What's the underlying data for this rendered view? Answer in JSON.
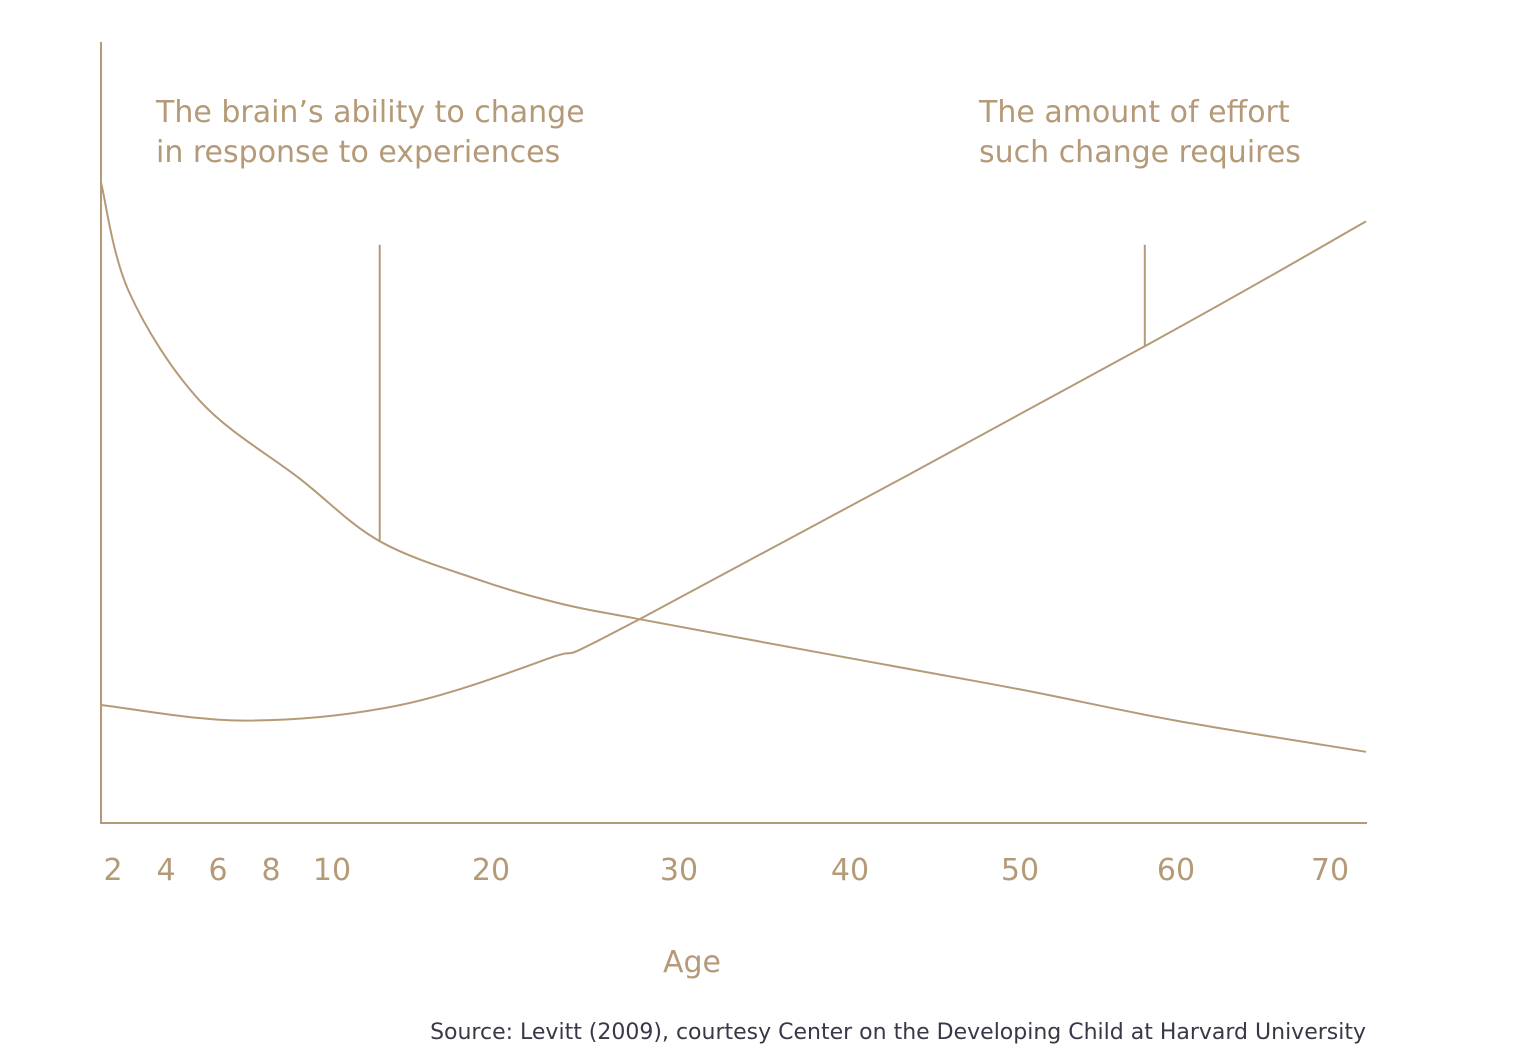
{
  "chart_data": {
    "type": "line",
    "title": "",
    "xlabel": "Age",
    "ylabel": "",
    "x_ticks": [
      2,
      4,
      6,
      8,
      10,
      20,
      30,
      40,
      50,
      60,
      70
    ],
    "x_scale": "non-linear (ages 2-10 expanded)",
    "xlim": [
      1.5,
      72.3
    ],
    "ylim": [
      0,
      1
    ],
    "y_ticks": [],
    "grid": false,
    "color": "#b59a78",
    "series": [
      {
        "name": "The brain's ability to change in response to experiences",
        "x": [
          1.5,
          2.6,
          5.3,
          8.95,
          13,
          19.3,
          23.7,
          27.9,
          40,
          50,
          60,
          72.3
        ],
        "y": [
          0.82,
          0.68,
          0.54,
          0.44,
          0.36,
          0.31,
          0.28,
          0.26,
          0.21,
          0.17,
          0.13,
          0.09
        ]
      },
      {
        "name": "The amount of effort such change requires",
        "x": [
          1.5,
          7,
          14.3,
          23.1,
          27.9,
          58,
          72.3
        ],
        "y": [
          0.15,
          0.13,
          0.15,
          0.21,
          0.26,
          0.61,
          0.77
        ]
      }
    ],
    "annotations": [
      {
        "lines": [
          "The brain’s ability to change",
          "in response to experiences"
        ],
        "pointer_x": 13,
        "pointer_from_y": 0.74,
        "pointer_to_y": 0.36
      },
      {
        "lines": [
          "The amount of effort",
          "such change requires"
        ],
        "pointer_x": 58,
        "pointer_from_y": 0.74,
        "pointer_to_y": 0.61
      }
    ],
    "source": "Source: Levitt (2009), courtesy Center on the Developing Child at Harvard University"
  }
}
